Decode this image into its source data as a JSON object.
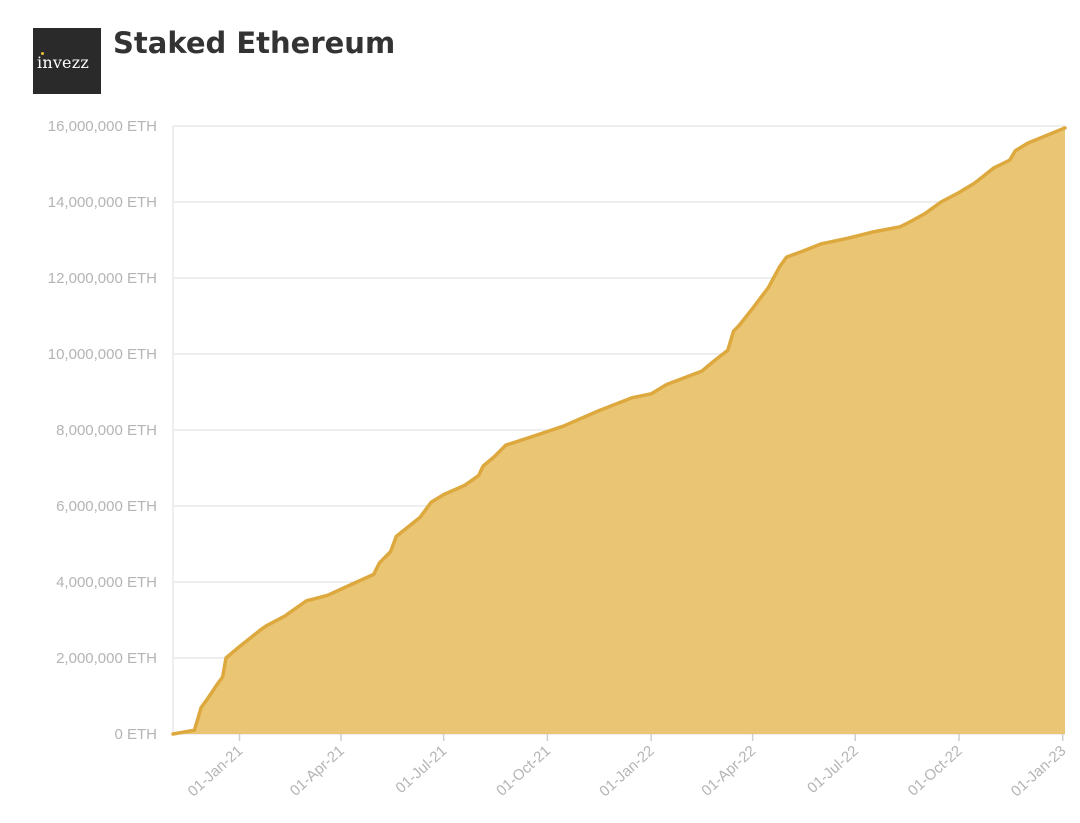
{
  "header": {
    "logo_text": "invezz",
    "title": "Staked Ethereum"
  },
  "colors": {
    "area_fill": "#E9C574",
    "line": "#DDA93E",
    "grid": "#e8e8e8",
    "tick_text": "#b4b4b4",
    "logo_bg": "#2a2a2a",
    "logo_dot": "#E8C03A"
  },
  "chart_data": {
    "type": "area",
    "title": "Staked Ethereum",
    "xlabel": "",
    "ylabel": "",
    "x_range": [
      "2020-11-03",
      "2023-01-03"
    ],
    "ylim": [
      0,
      16000000
    ],
    "grid": true,
    "legend": "none",
    "y_ticks": [
      0,
      2000000,
      4000000,
      6000000,
      8000000,
      10000000,
      12000000,
      14000000,
      16000000
    ],
    "y_tick_labels": [
      "0 ETH",
      "2,000,000 ETH",
      "4,000,000 ETH",
      "6,000,000 ETH",
      "8,000,000 ETH",
      "10,000,000 ETH",
      "12,000,000 ETH",
      "14,000,000 ETH",
      "16,000,000 ETH"
    ],
    "x_ticks": [
      "2021-01-01",
      "2021-04-01",
      "2021-07-01",
      "2021-10-01",
      "2022-01-01",
      "2022-04-01",
      "2022-07-01",
      "2022-10-01",
      "2023-01-01"
    ],
    "x_tick_labels": [
      "01-Jan-21",
      "01-Apr-21",
      "01-Jul-21",
      "01-Oct-21",
      "01-Jan-22",
      "01-Apr-22",
      "01-Jul-22",
      "01-Oct-22",
      "01-Jan-23"
    ],
    "series": [
      {
        "x": [
          "2020-11-03",
          "2020-11-22",
          "2020-11-24",
          "2020-11-28",
          "2020-12-03",
          "2020-12-12",
          "2020-12-17",
          "2020-12-20",
          "2021-01-01",
          "2021-01-20",
          "2021-01-25",
          "2021-02-10",
          "2021-03-01",
          "2021-03-20",
          "2021-04-15",
          "2021-04-30",
          "2021-05-05",
          "2021-05-15",
          "2021-05-20",
          "2021-06-10",
          "2021-06-20",
          "2021-07-01",
          "2021-07-20",
          "2021-08-01",
          "2021-08-05",
          "2021-08-15",
          "2021-08-25",
          "2021-09-15",
          "2021-09-30",
          "2021-10-15",
          "2021-11-15",
          "2021-12-15",
          "2022-01-01",
          "2022-01-15",
          "2022-02-15",
          "2022-02-25",
          "2022-03-10",
          "2022-03-15",
          "2022-03-20",
          "2022-04-01",
          "2022-04-15",
          "2022-04-25",
          "2022-05-01",
          "2022-05-15",
          "2022-06-01",
          "2022-06-25",
          "2022-07-15",
          "2022-08-10",
          "2022-08-20",
          "2022-09-01",
          "2022-09-15",
          "2022-10-01",
          "2022-10-15",
          "2022-11-01",
          "2022-11-15",
          "2022-11-20",
          "2022-12-01",
          "2023-01-03"
        ],
        "y": [
          0,
          100000,
          300000,
          700000,
          900000,
          1300000,
          1500000,
          2000000,
          2300000,
          2750000,
          2850000,
          3100000,
          3500000,
          3650000,
          4000000,
          4200000,
          4500000,
          4800000,
          5200000,
          5700000,
          6100000,
          6300000,
          6550000,
          6800000,
          7050000,
          7300000,
          7600000,
          7800000,
          7950000,
          8100000,
          8500000,
          8850000,
          8950000,
          9200000,
          9550000,
          9800000,
          10100000,
          10600000,
          10750000,
          11200000,
          11750000,
          12300000,
          12550000,
          12700000,
          12900000,
          13050000,
          13200000,
          13350000,
          13500000,
          13700000,
          14000000,
          14250000,
          14500000,
          14900000,
          15100000,
          15350000,
          15550000,
          15950000
        ]
      }
    ]
  }
}
